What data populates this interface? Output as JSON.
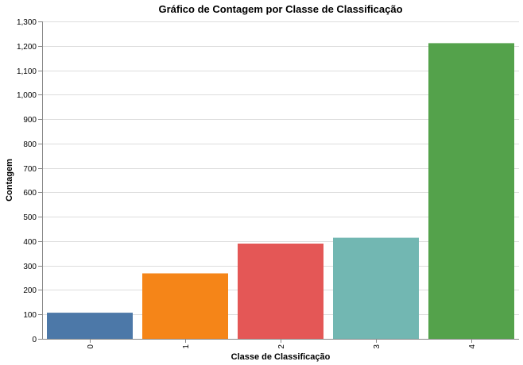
{
  "chart_data": {
    "type": "bar",
    "title": "Gráfico de Contagem por Classe de Classificação",
    "xlabel": "Classe de Classificação",
    "ylabel": "Contagem",
    "categories": [
      "0",
      "1",
      "2",
      "3",
      "4"
    ],
    "values": [
      107,
      268,
      390,
      414,
      1211
    ],
    "colors": [
      "#4c78a8",
      "#f58518",
      "#e45756",
      "#72b7b2",
      "#54a24b"
    ],
    "ylim": [
      0,
      1300
    ],
    "yticks": [
      0,
      100,
      200,
      300,
      400,
      500,
      600,
      700,
      800,
      900,
      1000,
      1100,
      1200,
      1300
    ],
    "ytick_labels": [
      "0",
      "100",
      "200",
      "300",
      "400",
      "500",
      "600",
      "700",
      "800",
      "900",
      "1,000",
      "1,100",
      "1,200",
      "1,300"
    ],
    "grid": true,
    "legend": "none"
  }
}
